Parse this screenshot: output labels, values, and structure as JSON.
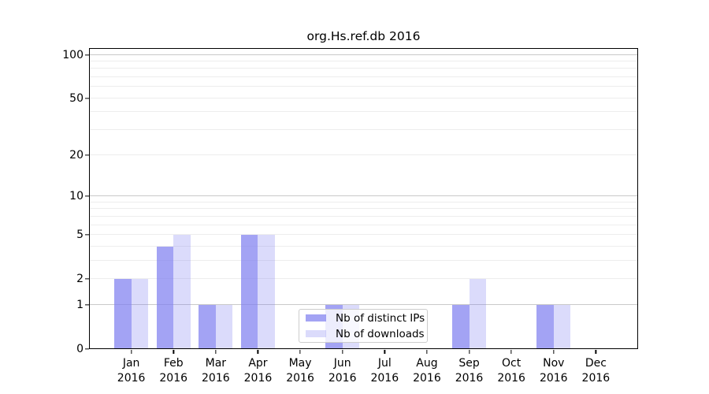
{
  "colors": {
    "bar_distinct_ips": "rgba(127,127,240,0.72)",
    "bar_downloads": "rgba(127,127,240,0.28)",
    "grid_major": "#c9c9c9",
    "grid_minor": "#ededed",
    "axis": "#000000",
    "legend_border": "#cccccc",
    "legend_bg": "rgba(255,255,255,0.8)"
  },
  "chart_data": {
    "type": "bar",
    "title": "org.Hs.ref.db 2016",
    "categories": [
      "Jan",
      "Feb",
      "Mar",
      "Apr",
      "May",
      "Jun",
      "Jul",
      "Aug",
      "Sep",
      "Oct",
      "Nov",
      "Dec"
    ],
    "x_year": "2016",
    "series": [
      {
        "name": "Nb of distinct IPs",
        "values": [
          2,
          4,
          1,
          5,
          0,
          1,
          0,
          0,
          1,
          0,
          1,
          0
        ]
      },
      {
        "name": "Nb of downloads",
        "values": [
          2,
          5,
          1,
          5,
          0,
          1,
          0,
          0,
          2,
          0,
          1,
          0
        ]
      }
    ],
    "y_scale": "log1p",
    "ylim": [
      0,
      111.2
    ],
    "y_ticks": [
      0,
      1,
      2,
      5,
      10,
      20,
      50,
      100
    ],
    "y_major_gridlines": [
      1,
      10,
      100
    ],
    "y_minor_gridlines": [
      2,
      3,
      4,
      5,
      6,
      7,
      8,
      9,
      20,
      30,
      40,
      50,
      60,
      70,
      80,
      90
    ],
    "grid": "on",
    "legend_position": "lower center",
    "xlabel": "",
    "ylabel": ""
  }
}
